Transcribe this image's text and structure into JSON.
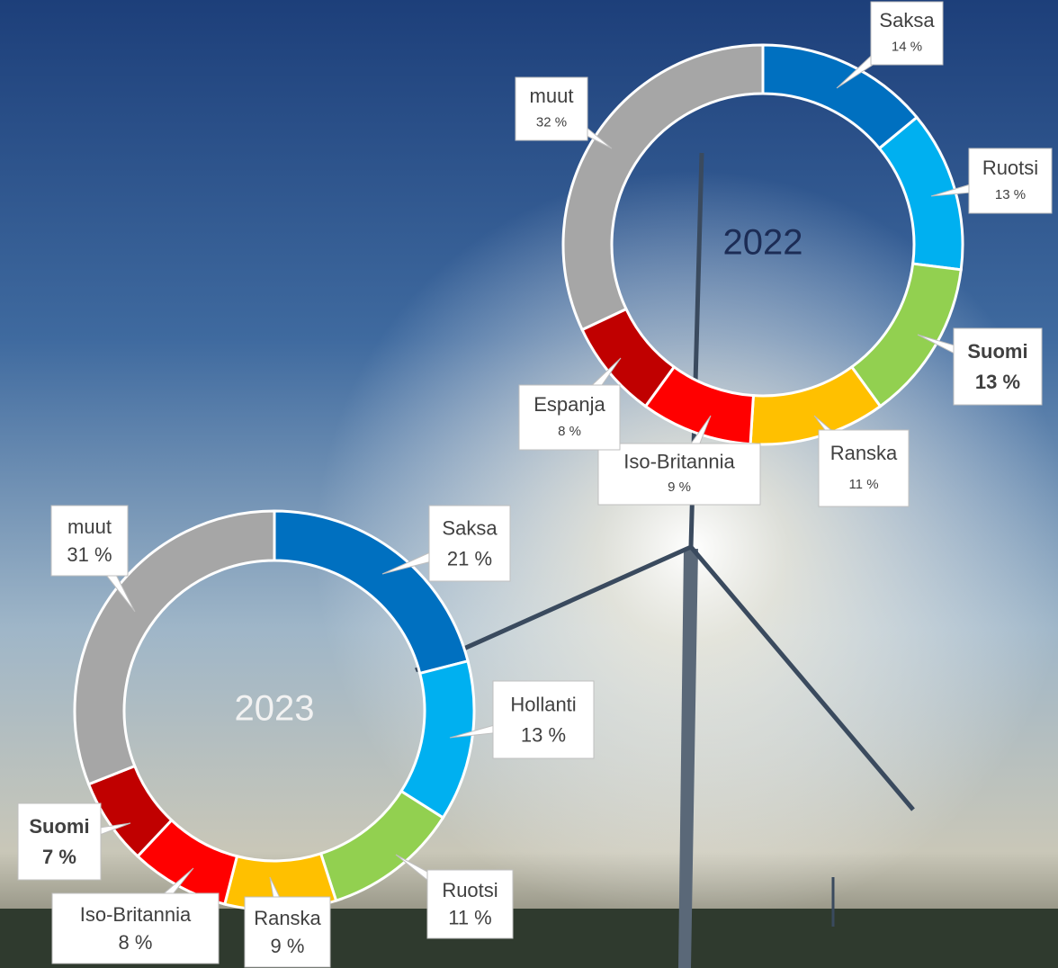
{
  "chart_data": [
    {
      "type": "donut",
      "title": "2022",
      "categories": [
        "Saksa",
        "Ruotsi",
        "Suomi",
        "Ranska",
        "Iso-Britannia",
        "Espanja",
        "muut"
      ],
      "values": [
        14,
        13,
        13,
        11,
        9,
        8,
        32
      ],
      "value_labels": [
        "14 %",
        "13 %",
        "13 %",
        "11 %",
        "9 %",
        "8 %",
        "32 %"
      ],
      "colors": [
        "#0070c0",
        "#00b0f0",
        "#92d050",
        "#ffc000",
        "#ff0000",
        "#c00000",
        "#a6a6a6"
      ],
      "highlight": "Suomi"
    },
    {
      "type": "donut",
      "title": "2023",
      "categories": [
        "Saksa",
        "Hollanti",
        "Ruotsi",
        "Ranska",
        "Iso-Britannia",
        "Suomi",
        "muut"
      ],
      "values": [
        21,
        13,
        11,
        9,
        8,
        7,
        31
      ],
      "value_labels": [
        "21 %",
        "13 %",
        "11 %",
        "9 %",
        "8 %",
        "7 %",
        "31 %"
      ],
      "colors": [
        "#0070c0",
        "#00b0f0",
        "#92d050",
        "#ffc000",
        "#ff0000",
        "#c00000",
        "#a6a6a6"
      ],
      "highlight": "Suomi"
    }
  ]
}
